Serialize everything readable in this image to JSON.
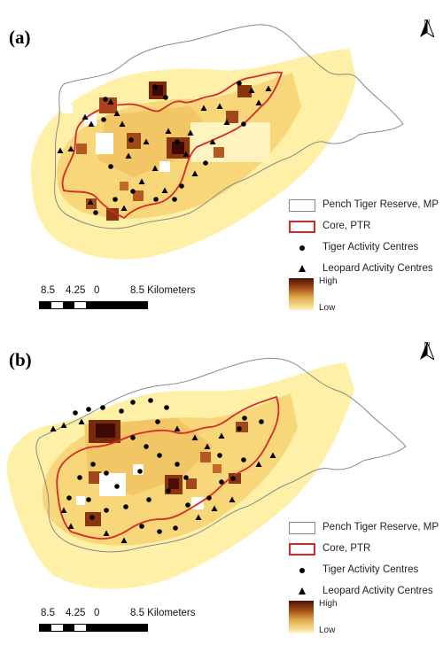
{
  "panels": [
    {
      "label": "(a)",
      "north_label": "N",
      "legend": {
        "boundary": "Pench Tiger Reserve, MP",
        "core": "Core, PTR",
        "tiger": "Tiger Activity Centres",
        "leopard": "Leopard Activity Centres",
        "high": "High",
        "low": "Low"
      },
      "scale": {
        "left": "8.5",
        "mid": "4.25",
        "zero": "0",
        "right": "8.5 Kilometers"
      }
    },
    {
      "label": "(b)",
      "north_label": "N",
      "legend": {
        "boundary": "Pench Tiger Reserve, MP",
        "core": "Core, PTR",
        "tiger": "Tiger Activity Centres",
        "leopard": "Leopard Activity Centres",
        "high": "High",
        "low": "Low"
      },
      "scale": {
        "left": "8.5",
        "mid": "4.25",
        "zero": "0",
        "right": "8.5 Kilometers"
      }
    }
  ],
  "colors": {
    "boundary": "#888888",
    "core": "#d8282a",
    "density_high": "#4a0f05",
    "density_mid": "#e0a84a",
    "density_low": "#fff2b0"
  }
}
